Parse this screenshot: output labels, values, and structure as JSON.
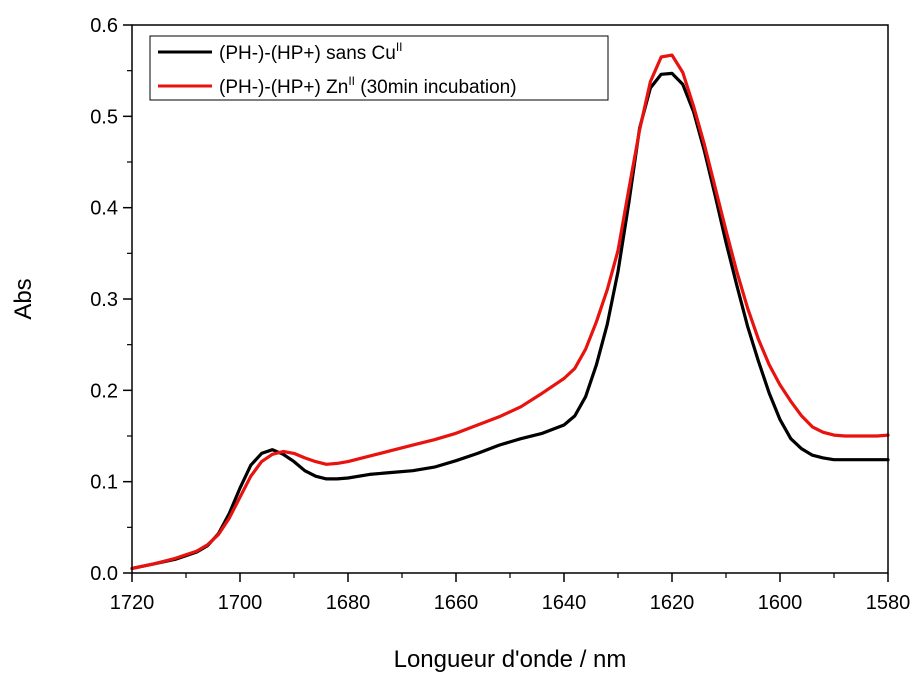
{
  "chart_data": {
    "type": "line",
    "xlabel": "Longueur d'onde / nm",
    "ylabel": "Abs",
    "xlim": [
      1720,
      1580
    ],
    "ylim": [
      0,
      0.6
    ],
    "x_ticks": [
      "1720",
      "1700",
      "1680",
      "1660",
      "1640",
      "1620",
      "1600",
      "1580"
    ],
    "y_ticks": [
      "0.0",
      "0.1",
      "0.2",
      "0.3",
      "0.4",
      "0.5",
      "0.6"
    ],
    "legend_position": "top-left",
    "series": [
      {
        "name": "(PH-)-(HP+) sans Cu",
        "name_superscript": "II",
        "color": "#000000",
        "x": [
          1720,
          1716,
          1712,
          1708,
          1706,
          1704,
          1702,
          1700,
          1698,
          1696,
          1694,
          1692,
          1690,
          1688,
          1686,
          1684,
          1682,
          1680,
          1676,
          1672,
          1668,
          1664,
          1660,
          1656,
          1652,
          1648,
          1644,
          1640,
          1638,
          1636,
          1634,
          1632,
          1630,
          1628,
          1626,
          1624,
          1622,
          1620,
          1618,
          1616,
          1614,
          1612,
          1610,
          1608,
          1606,
          1604,
          1602,
          1600,
          1598,
          1596,
          1594,
          1592,
          1590,
          1588,
          1586,
          1584,
          1582,
          1580
        ],
        "y": [
          0.005,
          0.01,
          0.015,
          0.023,
          0.03,
          0.043,
          0.065,
          0.093,
          0.118,
          0.131,
          0.135,
          0.13,
          0.122,
          0.112,
          0.106,
          0.103,
          0.103,
          0.104,
          0.108,
          0.11,
          0.112,
          0.116,
          0.123,
          0.131,
          0.14,
          0.147,
          0.153,
          0.162,
          0.172,
          0.193,
          0.228,
          0.272,
          0.33,
          0.405,
          0.487,
          0.531,
          0.546,
          0.547,
          0.535,
          0.505,
          0.462,
          0.413,
          0.362,
          0.315,
          0.27,
          0.232,
          0.197,
          0.168,
          0.147,
          0.136,
          0.129,
          0.126,
          0.124,
          0.124,
          0.124,
          0.124,
          0.124,
          0.124
        ]
      },
      {
        "name": "(PH-)-(HP+) Zn",
        "name_superscript": "II",
        "name_suffix": " (30min incubation)",
        "color": "#e8120e",
        "x": [
          1720,
          1716,
          1712,
          1708,
          1706,
          1704,
          1702,
          1700,
          1698,
          1696,
          1694,
          1692,
          1690,
          1688,
          1686,
          1684,
          1682,
          1680,
          1676,
          1672,
          1668,
          1664,
          1660,
          1656,
          1652,
          1648,
          1644,
          1640,
          1638,
          1636,
          1634,
          1632,
          1630,
          1628,
          1626,
          1624,
          1622,
          1620,
          1618,
          1616,
          1614,
          1612,
          1610,
          1608,
          1606,
          1604,
          1602,
          1600,
          1598,
          1596,
          1594,
          1592,
          1590,
          1588,
          1586,
          1584,
          1582,
          1580
        ],
        "y": [
          0.005,
          0.01,
          0.016,
          0.024,
          0.031,
          0.042,
          0.06,
          0.083,
          0.106,
          0.122,
          0.13,
          0.133,
          0.131,
          0.126,
          0.122,
          0.119,
          0.12,
          0.122,
          0.128,
          0.134,
          0.14,
          0.146,
          0.153,
          0.162,
          0.171,
          0.182,
          0.197,
          0.213,
          0.224,
          0.245,
          0.275,
          0.31,
          0.353,
          0.42,
          0.485,
          0.538,
          0.565,
          0.567,
          0.548,
          0.511,
          0.469,
          0.422,
          0.375,
          0.33,
          0.29,
          0.256,
          0.228,
          0.206,
          0.188,
          0.172,
          0.16,
          0.154,
          0.151,
          0.15,
          0.15,
          0.15,
          0.15,
          0.151
        ]
      }
    ]
  }
}
